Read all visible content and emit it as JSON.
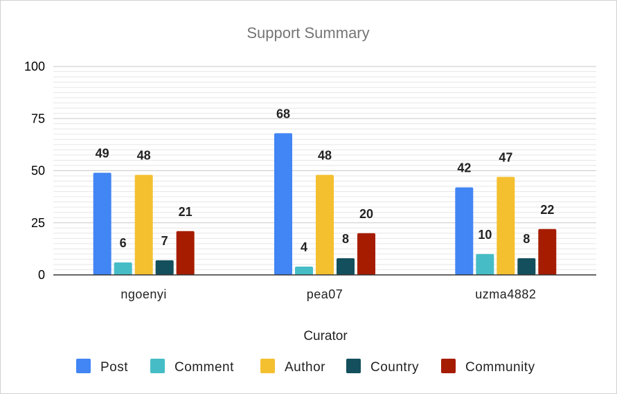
{
  "chart_data": {
    "type": "bar",
    "title": "Support Summary",
    "xlabel": "Curator",
    "ylabel": "",
    "ylim": [
      0,
      100
    ],
    "yticks": [
      0,
      25,
      50,
      75,
      100
    ],
    "grid": true,
    "legend_position": "bottom",
    "categories": [
      "ngoenyi",
      "pea07",
      "uzma4882"
    ],
    "series": [
      {
        "name": "Post",
        "color": "#4285f4",
        "values": [
          49,
          68,
          42
        ]
      },
      {
        "name": "Comment",
        "color": "#46bdc6",
        "values": [
          6,
          4,
          10
        ]
      },
      {
        "name": "Author",
        "color": "#f4c030",
        "values": [
          48,
          48,
          47
        ]
      },
      {
        "name": "Country",
        "color": "#134f5c",
        "values": [
          7,
          8,
          8
        ]
      },
      {
        "name": "Community",
        "color": "#a61c00",
        "values": [
          21,
          20,
          22
        ]
      }
    ]
  }
}
